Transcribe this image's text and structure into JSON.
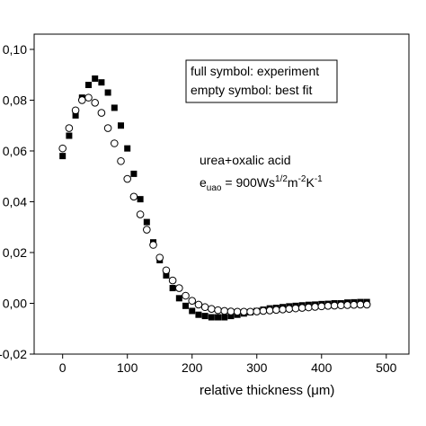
{
  "chart_data": {
    "type": "scatter",
    "x_label": "relative thickness (μm)",
    "x": [
      0,
      10,
      20,
      30,
      40,
      50,
      60,
      70,
      80,
      90,
      100,
      110,
      120,
      130,
      140,
      150,
      160,
      170,
      180,
      190,
      200,
      210,
      220,
      230,
      240,
      250,
      260,
      270,
      280,
      290,
      300,
      310,
      320,
      330,
      340,
      350,
      360,
      370,
      380,
      390,
      400,
      410,
      420,
      430,
      440,
      450,
      460,
      470
    ],
    "series": [
      {
        "name": "full symbol: experiment",
        "marker": "filled-square",
        "color": "#000000",
        "values": [
          0.058,
          0.066,
          0.074,
          0.081,
          0.086,
          0.0885,
          0.087,
          0.083,
          0.077,
          0.07,
          0.061,
          0.051,
          0.041,
          0.032,
          0.024,
          0.017,
          0.011,
          0.006,
          0.002,
          -0.001,
          -0.003,
          -0.0045,
          -0.005,
          -0.0055,
          -0.0055,
          -0.0055,
          -0.005,
          -0.0045,
          -0.004,
          -0.0035,
          -0.003,
          -0.0025,
          -0.002,
          -0.0018,
          -0.0015,
          -0.0012,
          -0.001,
          -0.0008,
          -0.0006,
          -0.0005,
          -0.0003,
          -0.0002,
          0,
          0,
          0.0003,
          0.0004,
          0.0005,
          0.0005
        ]
      },
      {
        "name": "empty symbol: best fit",
        "marker": "empty-circle",
        "color": "#000000",
        "values": [
          0.061,
          0.069,
          0.076,
          0.08,
          0.081,
          0.079,
          0.075,
          0.069,
          0.063,
          0.056,
          0.049,
          0.042,
          0.035,
          0.029,
          0.023,
          0.018,
          0.013,
          0.009,
          0.006,
          0.003,
          0.001,
          -0.0005,
          -0.0015,
          -0.0022,
          -0.0027,
          -0.003,
          -0.0032,
          -0.0033,
          -0.0033,
          -0.0033,
          -0.0032,
          -0.003,
          -0.0028,
          -0.0026,
          -0.0024,
          -0.0022,
          -0.002,
          -0.0018,
          -0.0016,
          -0.0014,
          -0.0012,
          -0.001,
          -0.0009,
          -0.0008,
          -0.0007,
          -0.0006,
          -0.0005,
          -0.0005
        ]
      }
    ],
    "annotations": [
      "urea+oxalic acid"
    ],
    "formula": [
      "e",
      "uao",
      " = 900Ws",
      "1/2",
      "m",
      "-2",
      "K",
      "-1"
    ],
    "xlim": [
      -44,
      535
    ],
    "xticks": [
      0,
      100,
      200,
      300,
      400,
      500
    ],
    "ylim": [
      -0.02,
      0.106
    ],
    "yticks": [
      {
        "value": -0.02,
        "label": "-0,02"
      },
      {
        "value": 0,
        "label": "0,00"
      },
      {
        "value": 0.02,
        "label": "0,02"
      },
      {
        "value": 0.04,
        "label": "0,04"
      },
      {
        "value": 0.06,
        "label": "0,06"
      },
      {
        "value": 0.08,
        "label": "0,08"
      },
      {
        "value": 0.1,
        "label": "0,10"
      }
    ]
  }
}
